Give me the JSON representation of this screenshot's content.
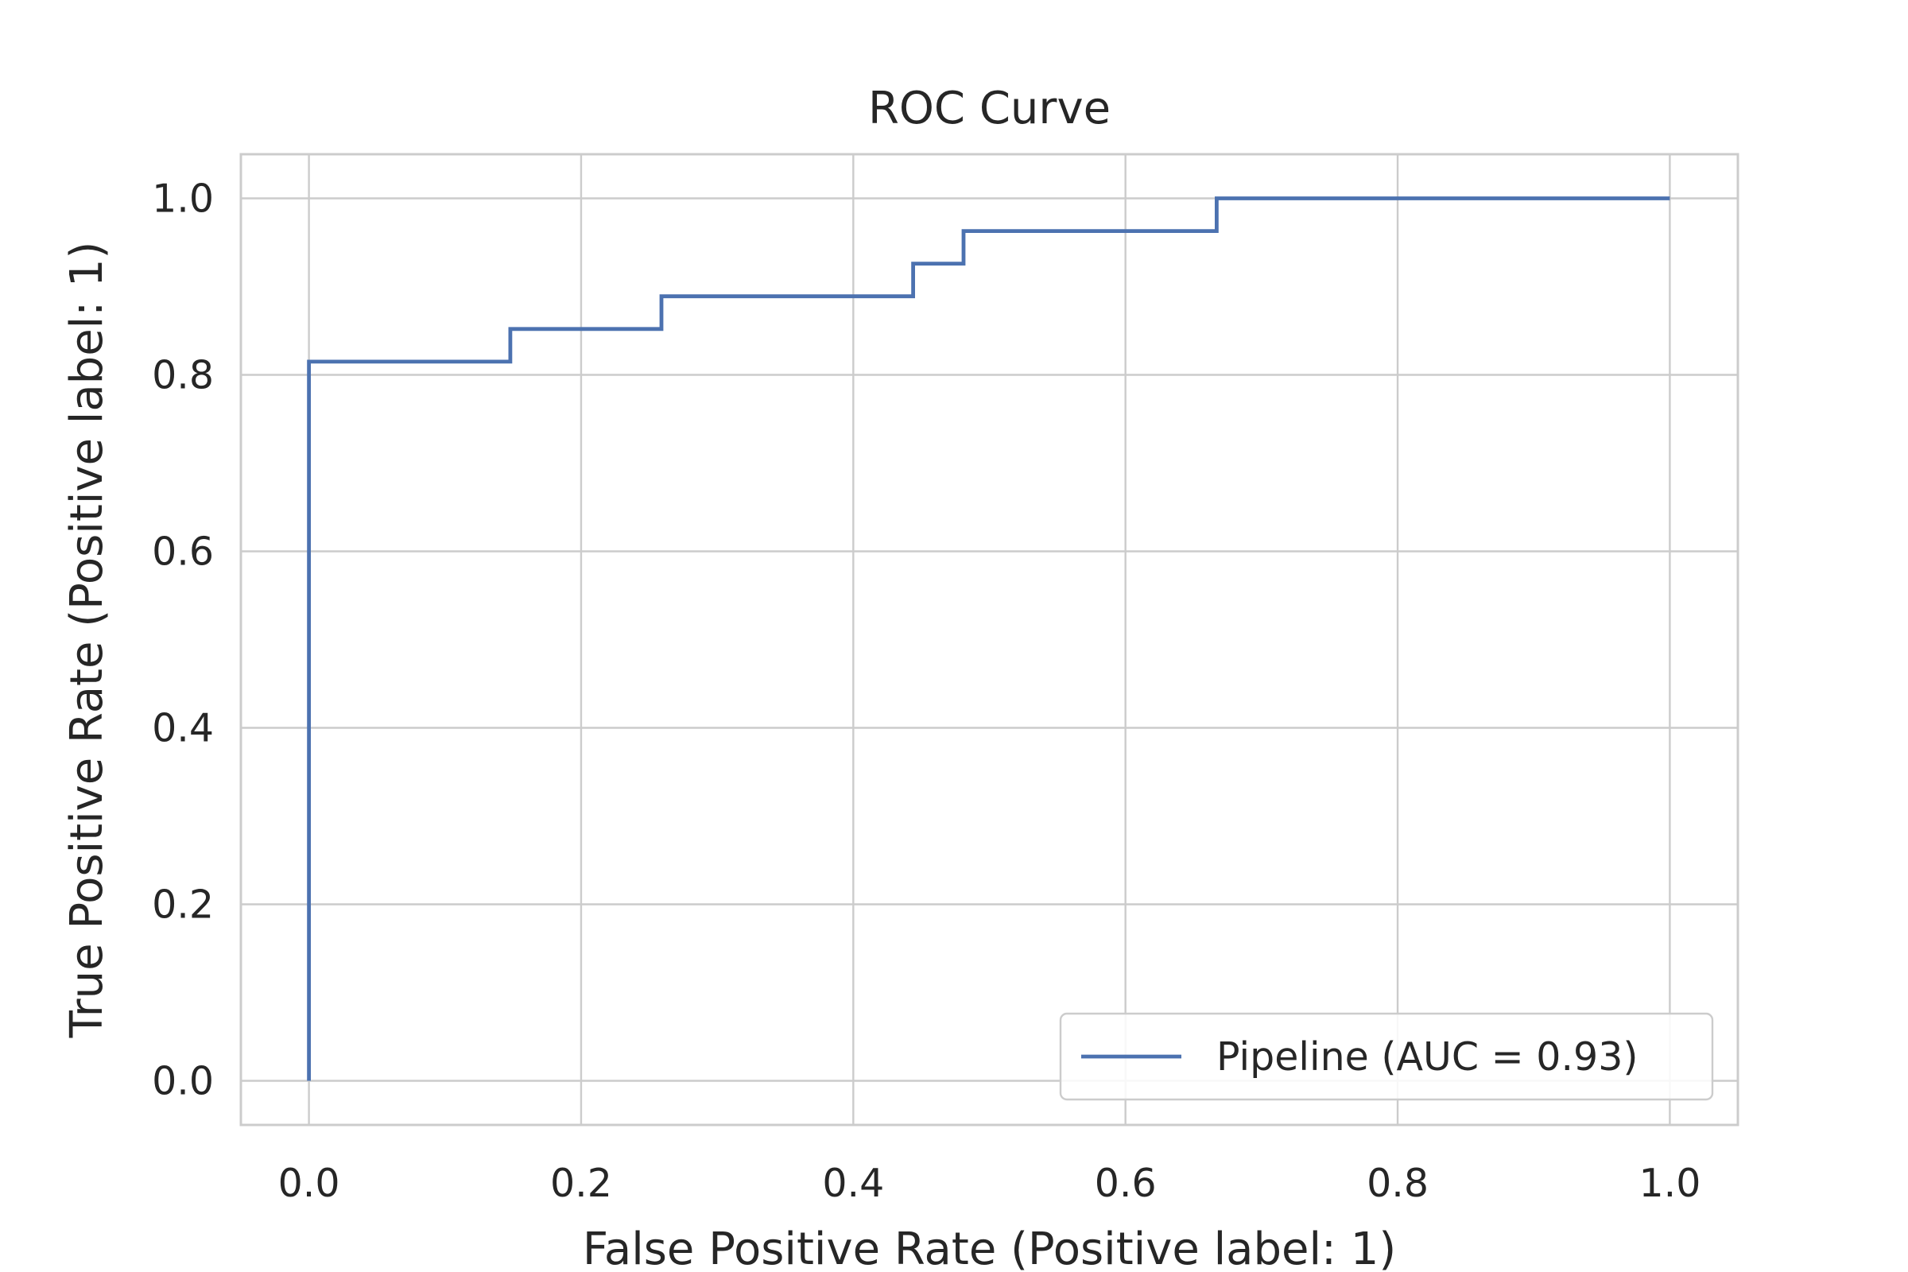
{
  "chart_data": {
    "type": "line",
    "title": "ROC Curve",
    "xlabel": "False Positive Rate (Positive label: 1)",
    "ylabel": "True Positive Rate (Positive label: 1)",
    "xlim": [
      -0.05,
      1.05
    ],
    "ylim": [
      -0.05,
      1.05
    ],
    "xticks": [
      0.0,
      0.2,
      0.4,
      0.6,
      0.8,
      1.0
    ],
    "xtick_labels": [
      "0.0",
      "0.2",
      "0.4",
      "0.6",
      "0.8",
      "1.0"
    ],
    "yticks": [
      0.0,
      0.2,
      0.4,
      0.6,
      0.8,
      1.0
    ],
    "ytick_labels": [
      "0.0",
      "0.2",
      "0.4",
      "0.6",
      "0.8",
      "1.0"
    ],
    "grid": true,
    "legend_position": "lower-right",
    "series": [
      {
        "name": "Pipeline (AUC = 0.93)",
        "color": "#4c72b0",
        "drawstyle": "steps",
        "x": [
          0.0,
          0.0,
          0.148,
          0.148,
          0.259,
          0.259,
          0.444,
          0.444,
          0.481,
          0.481,
          0.667,
          0.667,
          1.0
        ],
        "y": [
          0.0,
          0.815,
          0.815,
          0.852,
          0.852,
          0.889,
          0.889,
          0.926,
          0.926,
          0.963,
          0.963,
          1.0,
          1.0
        ]
      }
    ]
  }
}
